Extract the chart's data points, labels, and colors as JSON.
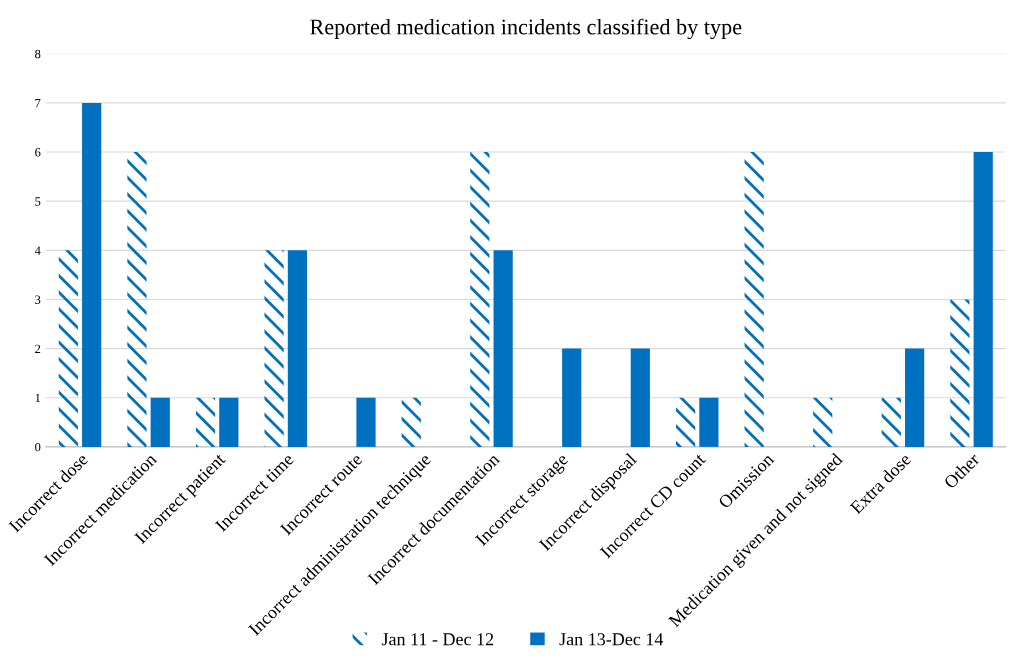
{
  "chart_data": {
    "type": "bar",
    "title": "Reported medication incidents classified by type",
    "categories": [
      "Incorrect dose",
      "Incorrect medication",
      "Incorrect patient",
      "Incorrect time",
      "Incorrect route",
      "Incorrect administration technique",
      "Incorrect documentation",
      "Incorrect storage",
      "Incorrect disposal",
      "Incorrect CD count",
      "Omission",
      "Medication given and not signed",
      "Extra dose",
      "Other"
    ],
    "series": [
      {
        "name": "Jan 11 - Dec 12",
        "color": "#0070c0",
        "values": [
          4,
          6,
          1,
          4,
          0,
          1,
          6,
          0,
          0,
          1,
          6,
          1,
          1,
          3
        ]
      },
      {
        "name": "Jan 13-Dec 14",
        "color": "#0070c0",
        "values": [
          7,
          1,
          1,
          4,
          1,
          0,
          4,
          2,
          2,
          1,
          0,
          0,
          2,
          6
        ]
      }
    ],
    "ylim": [
      0,
      8
    ],
    "yticks": [
      0,
      1,
      2,
      3,
      4,
      5,
      6,
      7,
      8
    ],
    "grid": "y",
    "legend": "bottom"
  }
}
